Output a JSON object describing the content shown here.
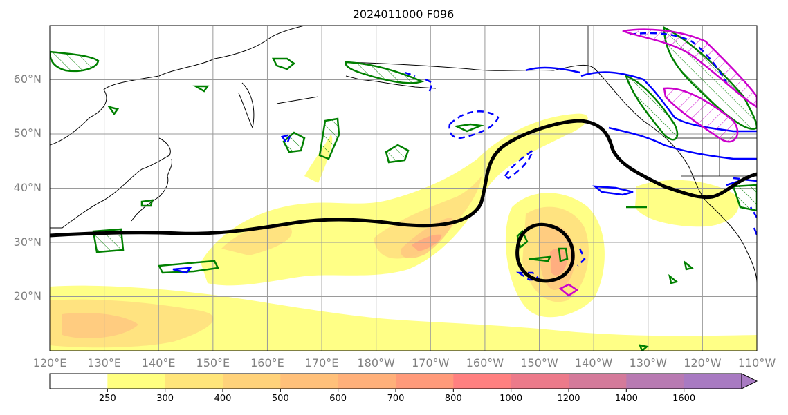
{
  "title": "2024011000 F096",
  "lat_labels": [
    "60°N",
    "50°N",
    "40°N",
    "30°N",
    "20°N"
  ],
  "lon_labels": [
    "120°E",
    "130°E",
    "140°E",
    "150°E",
    "160°E",
    "170°E",
    "180°W",
    "170°W",
    "160°W",
    "150°W",
    "140°W",
    "130°W",
    "120°W",
    "110°W"
  ],
  "colorbar": {
    "levels": [
      "250",
      "300",
      "400",
      "500",
      "600",
      "700",
      "800",
      "1000",
      "1200",
      "1400",
      "1600"
    ],
    "colors": [
      "#ffffff",
      "#ffff80",
      "#ffe57a",
      "#ffd27a",
      "#ffc07a",
      "#ffb07a",
      "#ff9a7a",
      "#ff8080",
      "#ec7a8a",
      "#d47a9a",
      "#b87ab2",
      "#a87ac2"
    ],
    "extend": "max"
  },
  "map": {
    "extent": {
      "lon": [
        120,
        250
      ],
      "lat": [
        10,
        70
      ]
    },
    "shading_colors": [
      "#ffff80",
      "#ffe080",
      "#ffc880",
      "#ffa880",
      "#ff8888"
    ],
    "contour_colors": {
      "thick_line": "#000000",
      "green": "#008000",
      "blue": "#0000ff",
      "magenta": "#cc00cc"
    }
  }
}
